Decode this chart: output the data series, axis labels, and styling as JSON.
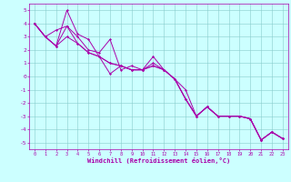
{
  "xlabel": "Windchill (Refroidissement éolien,°C)",
  "xlim": [
    -0.5,
    23.5
  ],
  "ylim": [
    -5.5,
    5.5
  ],
  "xticks": [
    0,
    1,
    2,
    3,
    4,
    5,
    6,
    7,
    8,
    9,
    10,
    11,
    12,
    13,
    14,
    15,
    16,
    17,
    18,
    19,
    20,
    21,
    22,
    23
  ],
  "yticks": [
    -5,
    -4,
    -3,
    -2,
    -1,
    0,
    1,
    2,
    3,
    4,
    5
  ],
  "color": "#aa00aa",
  "background_color": "#ccffff",
  "line1_x": [
    0,
    1,
    2,
    3,
    4,
    5,
    6,
    7,
    8,
    9,
    10,
    11,
    12,
    13,
    14,
    15,
    16,
    17,
    18,
    19,
    20,
    21,
    22,
    23
  ],
  "line1_y": [
    4.0,
    3.0,
    3.5,
    3.8,
    3.0,
    2.0,
    1.8,
    2.8,
    0.5,
    0.8,
    0.5,
    1.5,
    0.5,
    -0.2,
    -1.7,
    -3.0,
    -2.3,
    -3.0,
    -3.0,
    -3.0,
    -3.2,
    -4.8,
    -4.2,
    -4.7
  ],
  "line2_x": [
    0,
    1,
    2,
    3,
    4,
    5,
    6,
    7,
    8,
    9,
    10,
    11,
    12,
    13,
    14,
    15,
    16,
    17,
    18,
    19,
    20,
    21,
    22,
    23
  ],
  "line2_y": [
    4.0,
    3.0,
    2.3,
    5.0,
    3.2,
    2.8,
    1.5,
    1.0,
    0.8,
    0.5,
    0.5,
    1.0,
    0.5,
    -0.2,
    -1.0,
    -3.0,
    -2.3,
    -3.0,
    -3.0,
    -3.0,
    -3.2,
    -4.8,
    -4.2,
    -4.7
  ],
  "line3_x": [
    0,
    1,
    2,
    3,
    4,
    5,
    6,
    7,
    8,
    9,
    10,
    11,
    12,
    13,
    14,
    15,
    16,
    17,
    18,
    19,
    20,
    21,
    22,
    23
  ],
  "line3_y": [
    4.0,
    3.0,
    2.3,
    3.0,
    2.5,
    1.8,
    1.5,
    1.0,
    0.8,
    0.5,
    0.5,
    0.8,
    0.5,
    -0.2,
    -1.7,
    -3.0,
    -2.3,
    -3.0,
    -3.0,
    -3.0,
    -3.2,
    -4.8,
    -4.2,
    -4.7
  ],
  "line4_x": [
    0,
    1,
    2,
    3,
    4,
    5,
    6,
    7,
    8,
    9,
    10,
    11,
    12,
    13,
    14,
    15,
    16,
    17,
    18,
    19,
    20,
    21,
    22,
    23
  ],
  "line4_y": [
    4.0,
    3.0,
    2.3,
    3.8,
    2.5,
    1.8,
    1.5,
    0.2,
    0.8,
    0.5,
    0.5,
    0.8,
    0.5,
    -0.2,
    -1.7,
    -3.0,
    -2.3,
    -3.0,
    -3.0,
    -3.0,
    -3.2,
    -4.8,
    -4.2,
    -4.7
  ]
}
